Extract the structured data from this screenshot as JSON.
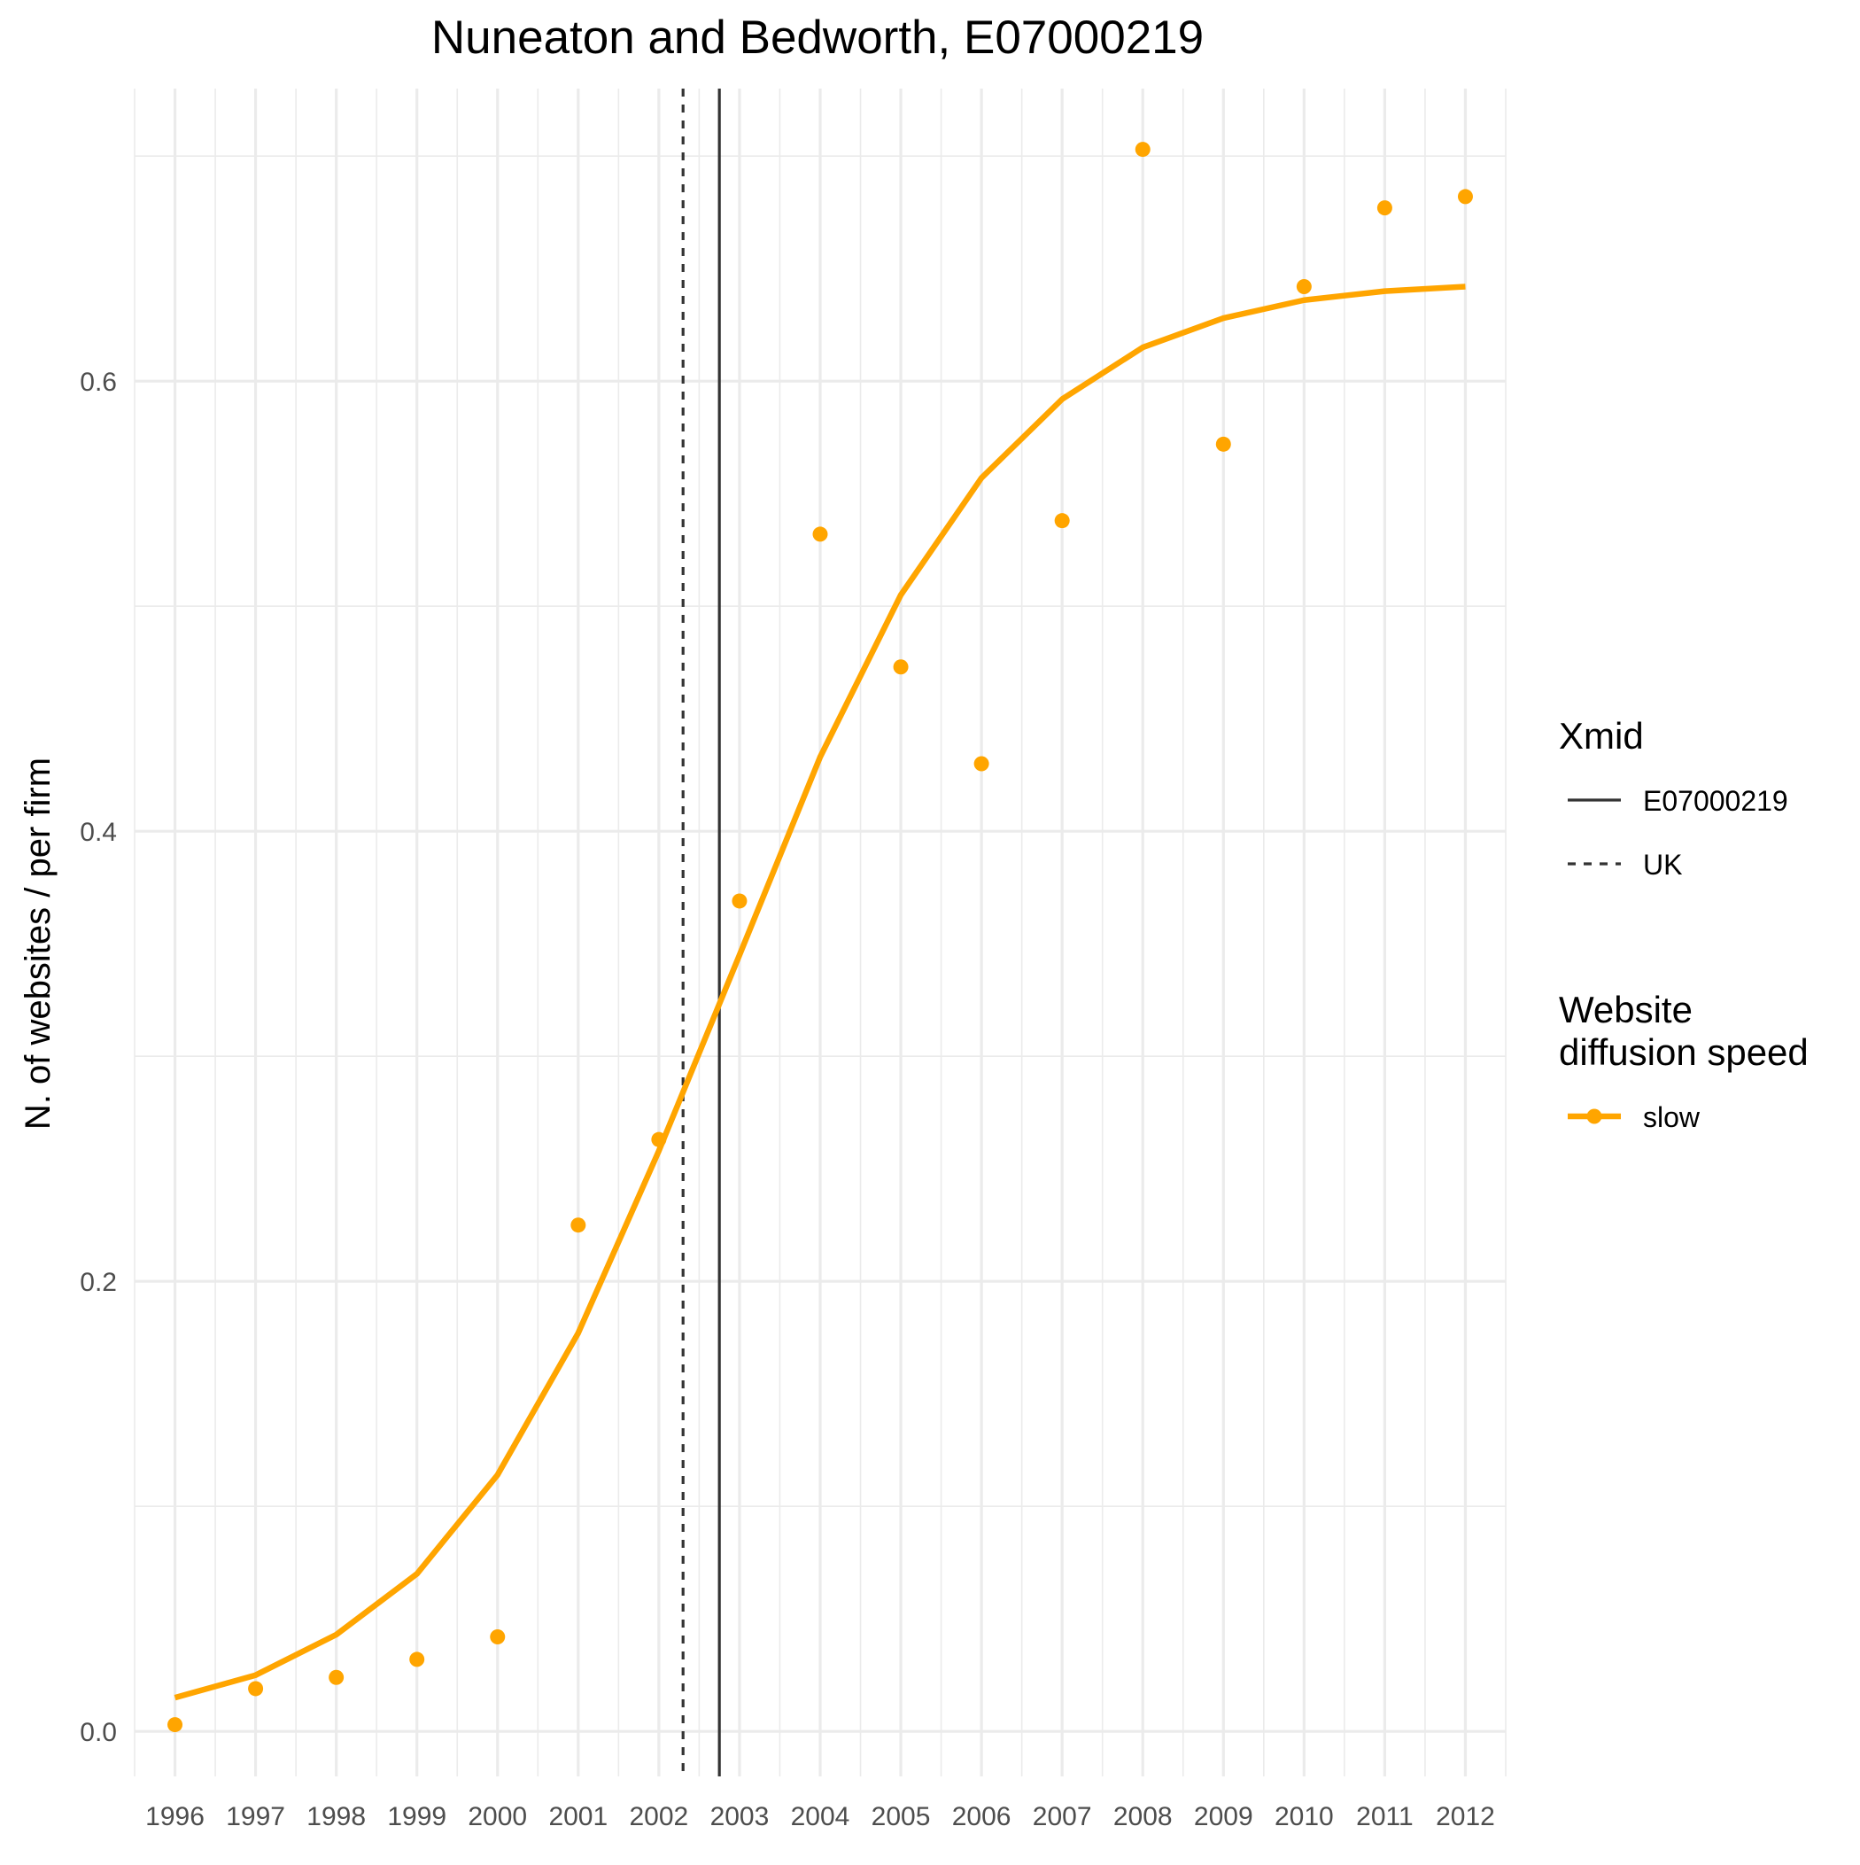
{
  "chart_data": {
    "type": "scatter",
    "title": "Nuneaton and Bedworth, E07000219",
    "xlabel": "",
    "ylabel": "N. of websites / per firm",
    "x": [
      1996,
      1997,
      1998,
      1999,
      2000,
      2001,
      2002,
      2003,
      2004,
      2005,
      2006,
      2007,
      2008,
      2009,
      2010,
      2011,
      2012
    ],
    "x_tick_labels": [
      "1996",
      "1997",
      "1998",
      "1999",
      "2000",
      "2001",
      "2002",
      "2003",
      "2004",
      "2005",
      "2006",
      "2007",
      "2008",
      "2009",
      "2010",
      "2011",
      "2012"
    ],
    "y_ticks": [
      0.0,
      0.2,
      0.4,
      0.6
    ],
    "y_tick_labels": [
      "0.0",
      "0.2",
      "0.4",
      "0.6"
    ],
    "xlim": [
      1995.5,
      2012.5
    ],
    "ylim": [
      -0.02,
      0.73
    ],
    "grid": true,
    "series": [
      {
        "name": "slow",
        "kind": "points",
        "color": "#FFA500",
        "values": [
          0.003,
          0.019,
          0.024,
          0.032,
          0.042,
          0.225,
          0.263,
          0.369,
          0.532,
          0.473,
          0.43,
          0.538,
          0.703,
          0.572,
          0.642,
          0.677,
          0.682
        ]
      },
      {
        "name": "slow",
        "kind": "line",
        "color": "#FFA500",
        "values": [
          0.015,
          0.025,
          0.043,
          0.07,
          0.114,
          0.177,
          0.258,
          0.345,
          0.433,
          0.505,
          0.557,
          0.592,
          0.615,
          0.628,
          0.636,
          0.64,
          0.642
        ]
      }
    ],
    "vlines": [
      {
        "name": "E07000219",
        "x": 2002.75,
        "style": "solid",
        "color": "#333333"
      },
      {
        "name": "UK",
        "x": 2002.3,
        "style": "dashed",
        "color": "#333333"
      }
    ],
    "legend": {
      "placement": "right",
      "groups": [
        {
          "title": [
            "Xmid"
          ],
          "items": [
            {
              "label": "E07000219",
              "style": "solid"
            },
            {
              "label": "UK",
              "style": "dashed"
            }
          ]
        },
        {
          "title": [
            "Website",
            "diffusion speed"
          ],
          "items": [
            {
              "label": "slow",
              "style": "point-line",
              "color": "#FFA500"
            }
          ]
        }
      ]
    }
  }
}
